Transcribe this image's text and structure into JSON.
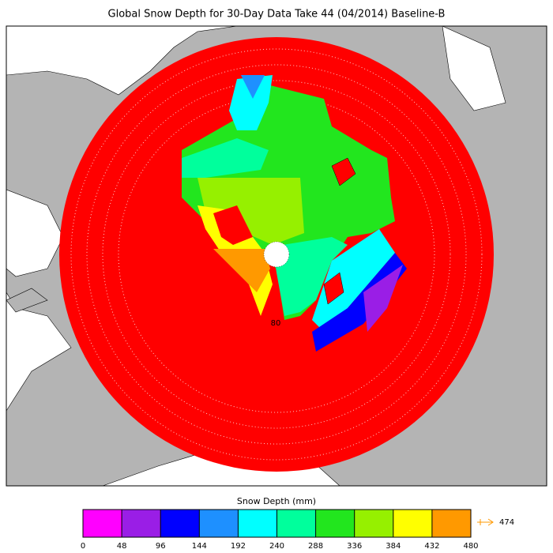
{
  "title": "Global Snow Depth for 30-Day Data Take 44 (04/2014) Baseline-B",
  "map": {
    "latitude_labels": [
      "80"
    ]
  },
  "colorbar": {
    "label": "Snow Depth (mm)",
    "ticks": [
      0,
      48,
      96,
      144,
      192,
      240,
      288,
      336,
      384,
      432,
      480
    ],
    "colors": [
      "#ff00ff",
      "#9a1ee6",
      "#0000ff",
      "#1e90ff",
      "#00ffff",
      "#00ff9c",
      "#22e61e",
      "#96f000",
      "#ffff00",
      "#ff9900"
    ],
    "max_value": 474,
    "max_color": "#ff9900"
  }
}
